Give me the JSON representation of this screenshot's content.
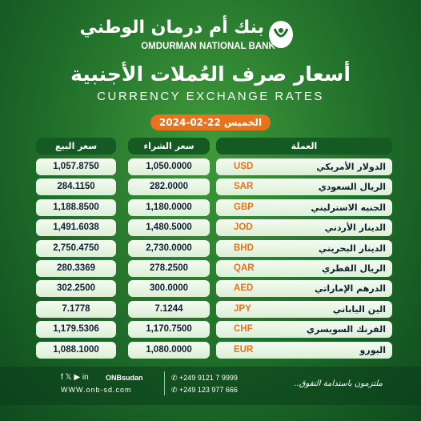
{
  "header": {
    "bank_name_ar": "بنك أم درمان الوطني",
    "bank_name_en": "OMDURMAN NATIONAL BANK",
    "title_ar": "أسعار صرف العُملات الأجنبية",
    "title_en": "CURRENCY EXCHANGE RATES",
    "date": "الخميس 22-02-2024"
  },
  "table": {
    "columns": [
      "العملة",
      "سعر الشراء",
      "سعر البيع"
    ],
    "rows": [
      {
        "name": "الدولار الأمريكي",
        "code": "USD",
        "buy": "1,050.0000",
        "sell": "1,057.8750"
      },
      {
        "name": "الريال السعودي",
        "code": "SAR",
        "buy": "282.0000",
        "sell": "284.1150"
      },
      {
        "name": "الجنيه الاسترليني",
        "code": "GBP",
        "buy": "1,180.0000",
        "sell": "1,188.8500"
      },
      {
        "name": "الدينار الأردني",
        "code": "JOD",
        "buy": "1,480.5000",
        "sell": "1,491.6038"
      },
      {
        "name": "الدينار البحريني",
        "code": "BHD",
        "buy": "2,730.0000",
        "sell": "2,750.4750"
      },
      {
        "name": "الريال القطري",
        "code": "QAR",
        "buy": "278.2500",
        "sell": "280.3369"
      },
      {
        "name": "الدرهم الإماراتي",
        "code": "AED",
        "buy": "300.0000",
        "sell": "302.2500"
      },
      {
        "name": "الين الياباني",
        "code": "JPY",
        "buy": "7.1244",
        "sell": "7.1778"
      },
      {
        "name": "الفرنك السويسري",
        "code": "CHF",
        "buy": "1,170.7500",
        "sell": "1,179.5306"
      },
      {
        "name": "اليورو",
        "code": "EUR",
        "buy": "1,080.0000",
        "sell": "1,088.1000"
      }
    ]
  },
  "footer": {
    "social": "ONBsudan",
    "website": "WWW.onb-sd.com",
    "phones": [
      "+249 9121 7 9999",
      "+249 123 977 666"
    ],
    "slogan": "ملتزمون باستدامة التفوق.."
  }
}
